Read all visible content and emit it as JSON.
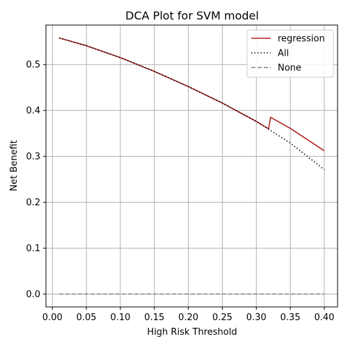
{
  "chart_data": {
    "type": "line",
    "title": "DCA Plot for SVM model",
    "xlabel": "High Risk Threshold",
    "ylabel": "Net Benefit",
    "xlim": [
      -0.0095,
      0.4195
    ],
    "ylim": [
      -0.028,
      0.586
    ],
    "xticks": [
      "0.00",
      "0.05",
      "0.10",
      "0.15",
      "0.20",
      "0.25",
      "0.30",
      "0.35",
      "0.40"
    ],
    "yticks": [
      "0.0",
      "0.1",
      "0.2",
      "0.3",
      "0.4",
      "0.5"
    ],
    "grid": true,
    "legend_position": "top-right",
    "series": [
      {
        "name": "regression",
        "color": "#b22222",
        "style": "solid",
        "x": [
          0.01,
          0.05,
          0.1,
          0.15,
          0.2,
          0.25,
          0.3,
          0.318,
          0.321,
          0.35,
          0.4
        ],
        "y": [
          0.558,
          0.541,
          0.515,
          0.485,
          0.452,
          0.416,
          0.376,
          0.36,
          0.385,
          0.361,
          0.312
        ]
      },
      {
        "name": "All",
        "color": "#000000",
        "style": "dotted",
        "x": [
          0.01,
          0.05,
          0.1,
          0.15,
          0.2,
          0.25,
          0.3,
          0.35,
          0.4
        ],
        "y": [
          0.558,
          0.541,
          0.515,
          0.485,
          0.452,
          0.416,
          0.376,
          0.329,
          0.271
        ]
      },
      {
        "name": "None",
        "color": "#808080",
        "style": "dashed",
        "x": [
          0.01,
          0.4
        ],
        "y": [
          0.0,
          0.0
        ]
      }
    ]
  }
}
